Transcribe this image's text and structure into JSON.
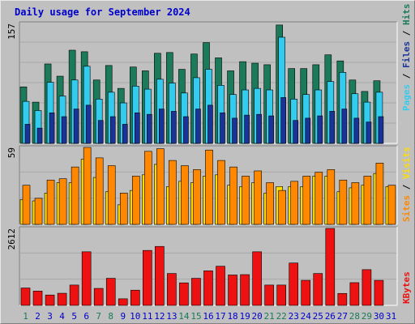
{
  "title": "Daily usage for September 2024",
  "colors": {
    "hits": "#1a7a5a",
    "files": "#33ccee",
    "pages": "#1a3399",
    "sites": "#ff8800",
    "visits": "#ffdd00",
    "kbytes": "#ee1111",
    "weekend_day": "#1a7a5a",
    "weekday": "#0000cc"
  },
  "legend": {
    "top": [
      "Pages",
      "Files",
      "Hits"
    ],
    "middle": [
      "Sites",
      "Visits"
    ],
    "bottom": [
      "KBytes"
    ],
    "separator": "/"
  },
  "chart_data": [
    {
      "type": "bar",
      "panel": "top",
      "ymax_label": "157",
      "ylim": [
        0,
        157
      ],
      "categories": [
        "1",
        "2",
        "3",
        "4",
        "5",
        "6",
        "7",
        "8",
        "9",
        "10",
        "11",
        "12",
        "13",
        "14",
        "15",
        "16",
        "17",
        "18",
        "19",
        "20",
        "21",
        "22",
        "23",
        "24",
        "25",
        "26",
        "27",
        "28",
        "29",
        "30",
        "31"
      ],
      "series": [
        {
          "name": "Hits",
          "values": [
            74,
            54,
            104,
            88,
            122,
            120,
            83,
            102,
            72,
            100,
            95,
            118,
            119,
            97,
            117,
            132,
            112,
            95,
            107,
            105,
            103,
            155,
            98,
            98,
            103,
            116,
            108,
            83,
            68,
            82,
            0
          ]
        },
        {
          "name": "Files",
          "values": [
            55,
            43,
            80,
            62,
            83,
            101,
            58,
            67,
            53,
            75,
            71,
            84,
            79,
            66,
            86,
            97,
            76,
            64,
            70,
            72,
            70,
            139,
            58,
            64,
            70,
            81,
            93,
            65,
            54,
            67,
            0
          ]
        },
        {
          "name": "Pages",
          "values": [
            25,
            20,
            40,
            35,
            45,
            50,
            30,
            35,
            25,
            40,
            38,
            45,
            42,
            35,
            45,
            50,
            40,
            33,
            37,
            38,
            36,
            60,
            30,
            33,
            36,
            42,
            45,
            33,
            28,
            35,
            0
          ]
        }
      ]
    },
    {
      "type": "bar",
      "panel": "middle",
      "ymax_label": "59",
      "ylim": [
        0,
        59
      ],
      "categories": [
        "1",
        "2",
        "3",
        "4",
        "5",
        "6",
        "7",
        "8",
        "9",
        "10",
        "11",
        "12",
        "13",
        "14",
        "15",
        "16",
        "17",
        "18",
        "19",
        "20",
        "21",
        "22",
        "23",
        "24",
        "25",
        "26",
        "27",
        "28",
        "29",
        "30",
        "31"
      ],
      "series": [
        {
          "name": "Sites",
          "values": [
            30,
            20,
            34,
            35,
            44,
            59,
            51,
            45,
            24,
            37,
            56,
            58,
            49,
            45,
            42,
            57,
            49,
            44,
            37,
            41,
            32,
            26,
            33,
            37,
            40,
            42,
            34,
            32,
            37,
            47,
            30
          ]
        },
        {
          "name": "Visits",
          "values": [
            19,
            18,
            24,
            32,
            32,
            50,
            36,
            25,
            15,
            26,
            38,
            46,
            29,
            33,
            32,
            37,
            38,
            30,
            29,
            32,
            24,
            29,
            29,
            29,
            37,
            37,
            25,
            28,
            30,
            39,
            29
          ]
        }
      ]
    },
    {
      "type": "bar",
      "panel": "bottom",
      "ymax_label": "2612",
      "ylim": [
        0,
        2612
      ],
      "categories": [
        "1",
        "2",
        "3",
        "4",
        "5",
        "6",
        "7",
        "8",
        "9",
        "10",
        "11",
        "12",
        "13",
        "14",
        "15",
        "16",
        "17",
        "18",
        "19",
        "20",
        "21",
        "22",
        "23",
        "24",
        "25",
        "26",
        "27",
        "28",
        "29",
        "30",
        "31"
      ],
      "series": [
        {
          "name": "KBytes",
          "values": [
            590,
            486,
            352,
            411,
            690,
            1819,
            576,
            919,
            223,
            516,
            1865,
            2001,
            1082,
            764,
            919,
            1173,
            1328,
            1032,
            1044,
            1819,
            690,
            690,
            1438,
            850,
            1082,
            2612,
            405,
            771,
            1213,
            850,
            0
          ]
        }
      ]
    }
  ]
}
